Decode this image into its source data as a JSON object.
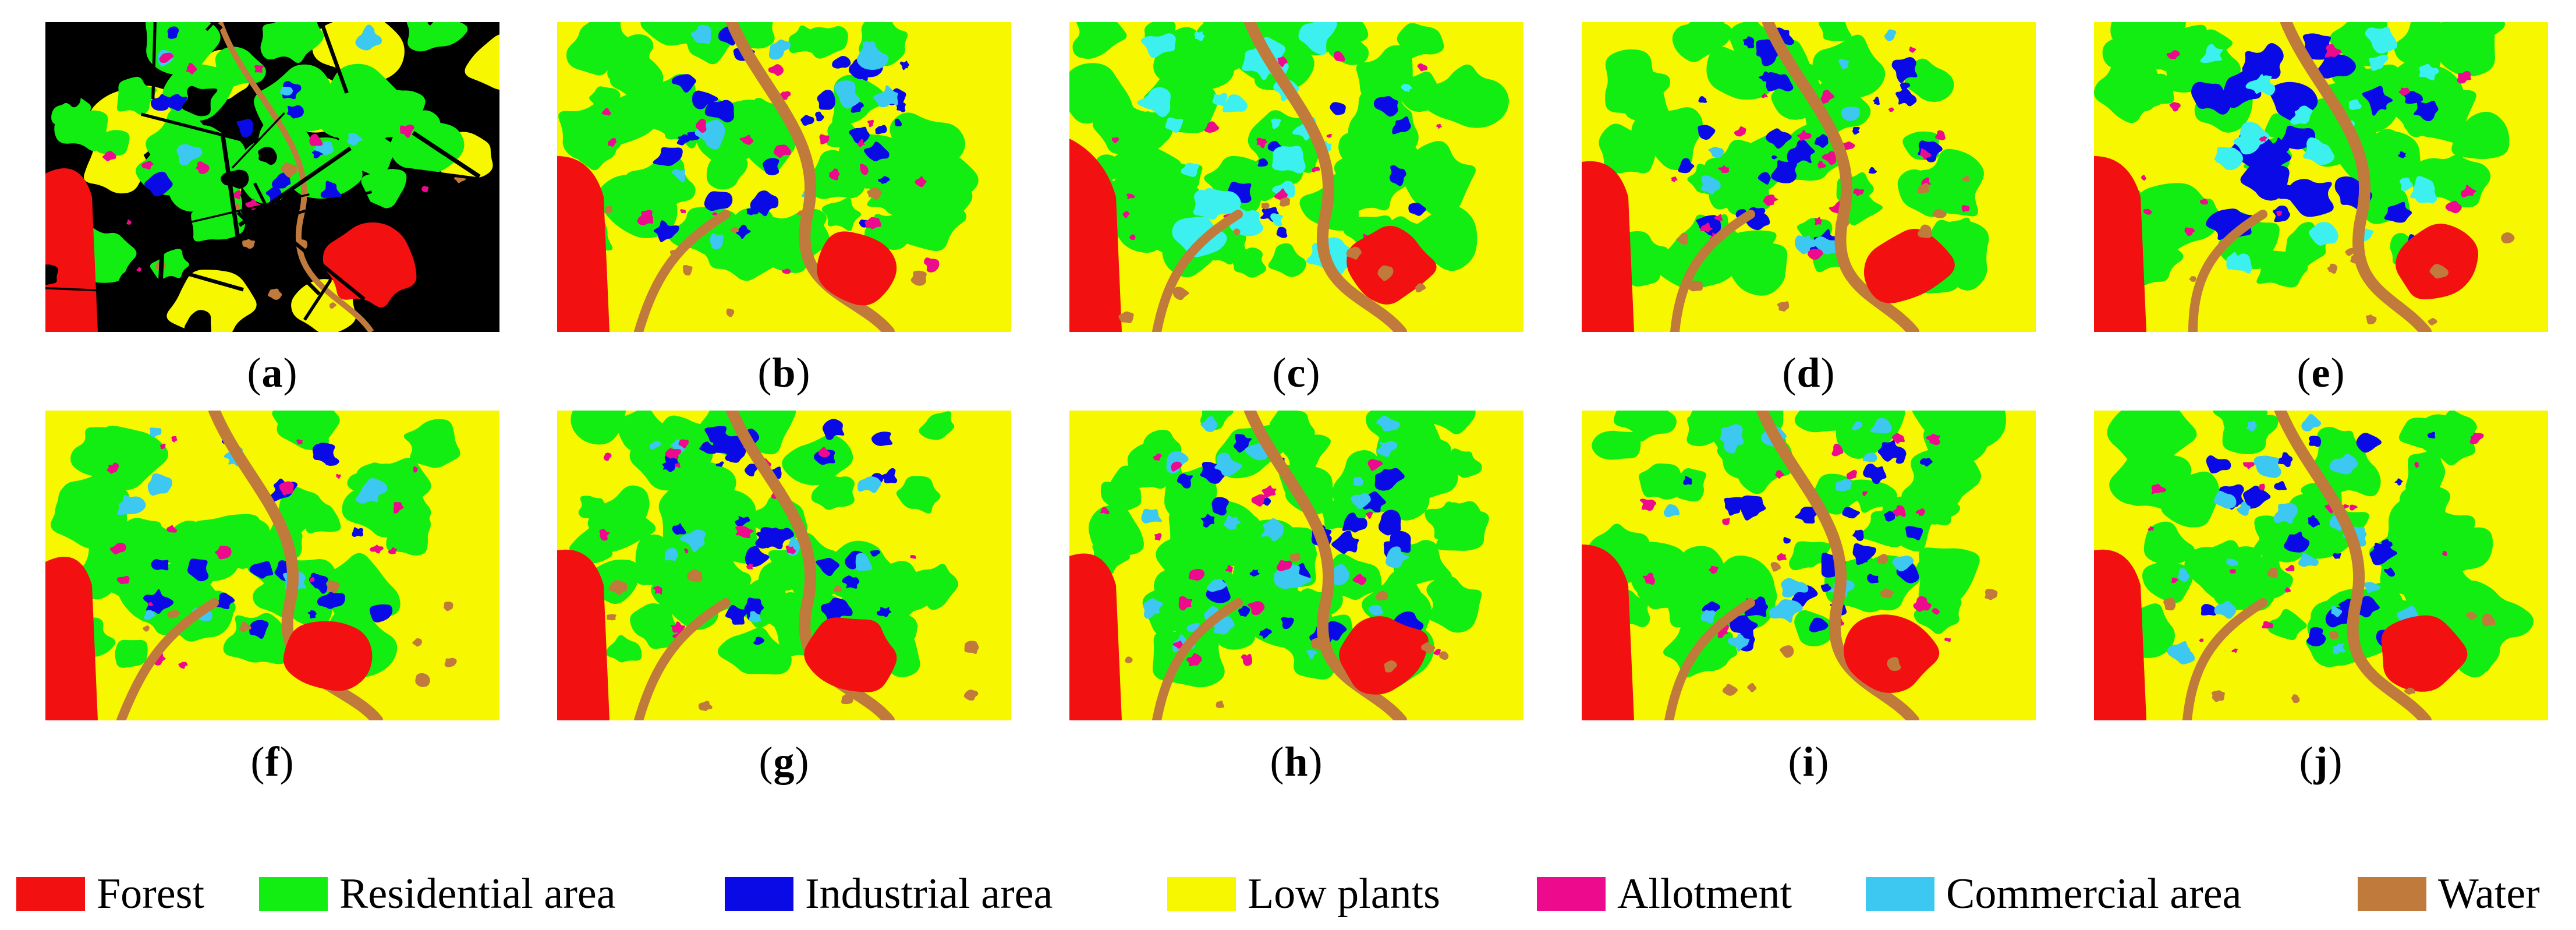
{
  "panels": [
    {
      "id": "a",
      "label": "a"
    },
    {
      "id": "b",
      "label": "b"
    },
    {
      "id": "c",
      "label": "c"
    },
    {
      "id": "d",
      "label": "d"
    },
    {
      "id": "e",
      "label": "e"
    },
    {
      "id": "f",
      "label": "f"
    },
    {
      "id": "g",
      "label": "g"
    },
    {
      "id": "h",
      "label": "h"
    },
    {
      "id": "i",
      "label": "i"
    },
    {
      "id": "j",
      "label": "j"
    }
  ],
  "legend": [
    {
      "label": "Forest",
      "color": "#f21010"
    },
    {
      "label": "Residential area",
      "color": "#12ee12"
    },
    {
      "label": "Industrial area",
      "color": "#0a0ae6"
    },
    {
      "label": "Low plants",
      "color": "#f7f700"
    },
    {
      "label": "Allotment",
      "color": "#ee0a8c"
    },
    {
      "label": "Commercial area",
      "color": "#3cc8f0"
    },
    {
      "label": "Water",
      "color": "#c07a3c"
    }
  ],
  "colors": {
    "forest": "#f21010",
    "residential": "#12ee12",
    "industrial": "#0a0ae6",
    "low_plants": "#f7f700",
    "allotment": "#ee0a8c",
    "commercial": "#3cc8f0",
    "water": "#c07a3c",
    "cyan_bright": "#3cf0f0",
    "background_unlabeled": "#000000"
  }
}
